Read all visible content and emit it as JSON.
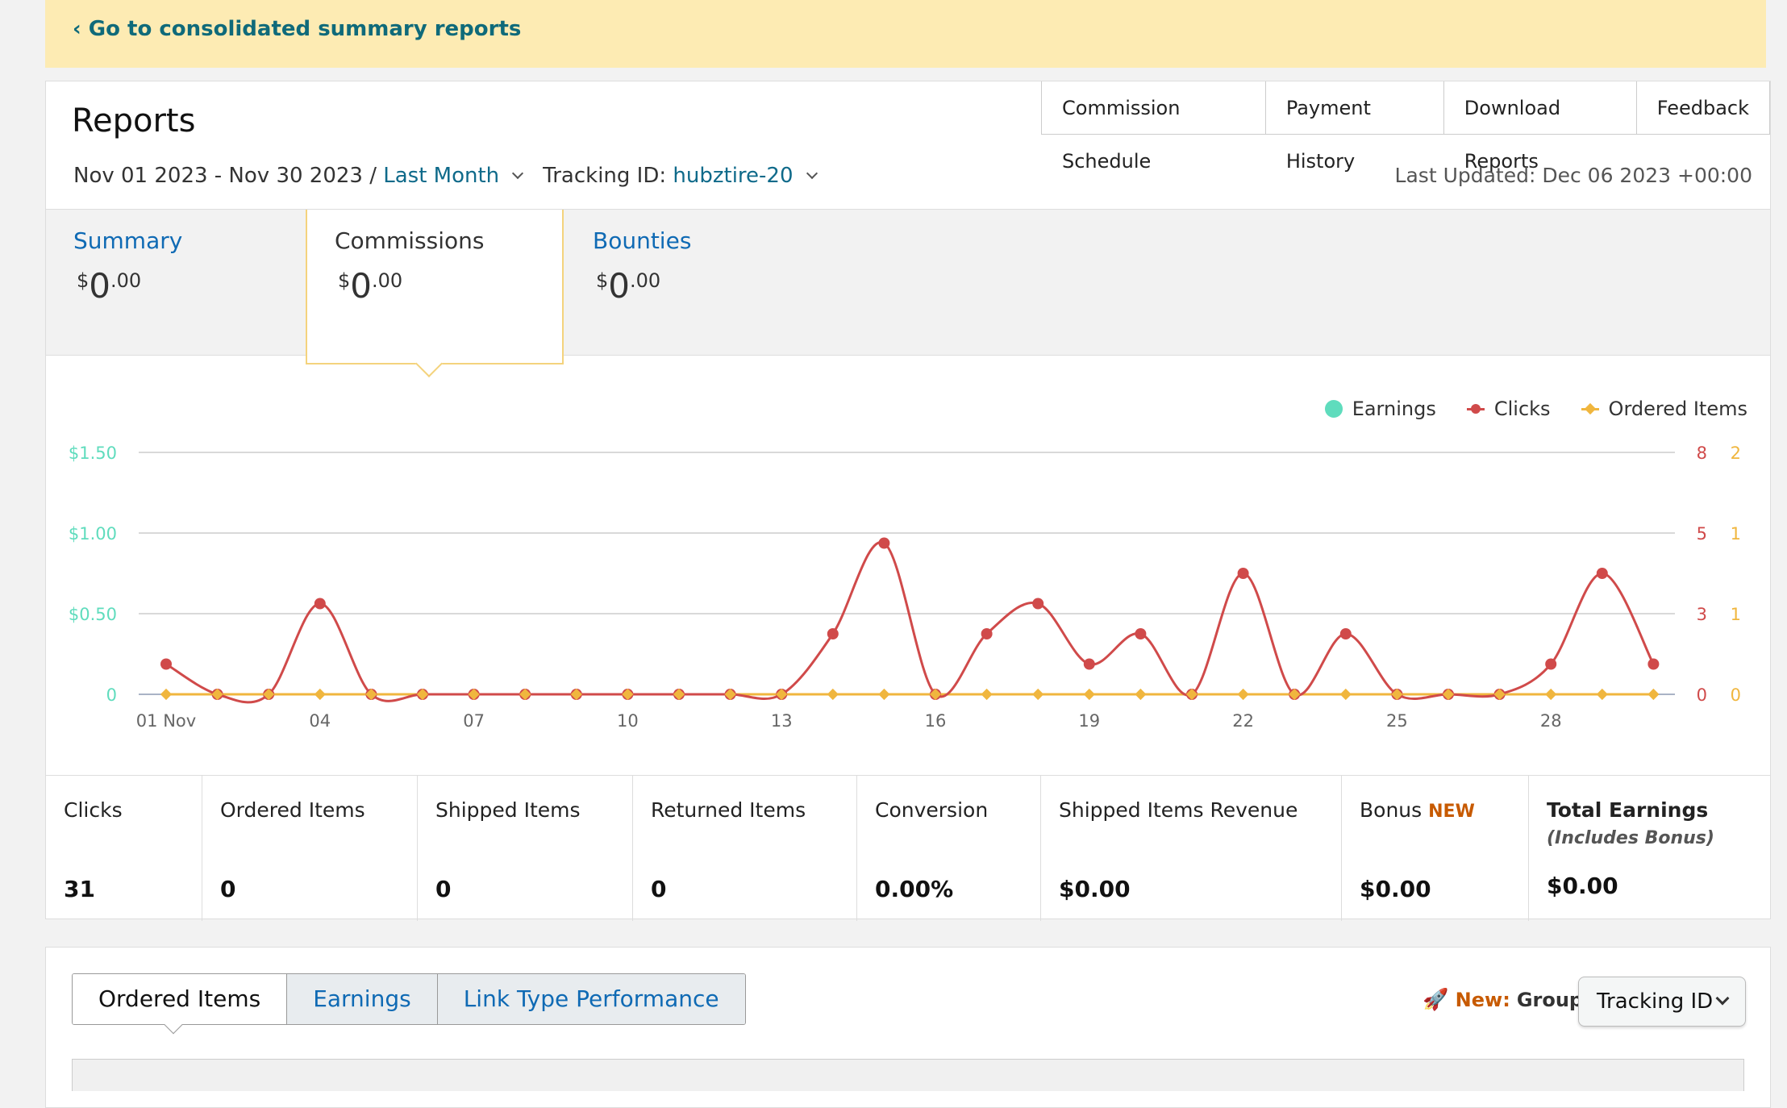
{
  "banner": {
    "back_link": "‹ Go to consolidated summary reports"
  },
  "reports": {
    "title": "Reports",
    "toplinks": [
      "Commission Schedule",
      "Payment History",
      "Download Reports",
      "Feedback"
    ],
    "date_range": "Nov 01 2023 - Nov 30 2023 /",
    "period": "Last Month",
    "tracking_label": "Tracking ID:",
    "tracking_id": "hubztire-20",
    "last_updated": "Last Updated: Dec 06 2023 +00:00"
  },
  "tabs": [
    {
      "label": "Summary",
      "currency": "$",
      "whole": "0",
      "cents": ".00",
      "active": false
    },
    {
      "label": "Commissions",
      "currency": "$",
      "whole": "0",
      "cents": ".00",
      "active": true
    },
    {
      "label": "Bounties",
      "currency": "$",
      "whole": "0",
      "cents": ".00",
      "active": false
    }
  ],
  "legend": {
    "earnings": "Earnings",
    "clicks": "Clicks",
    "ordered": "Ordered Items"
  },
  "colors": {
    "earnings": "#5fdcbd",
    "clicks": "#d04a4a",
    "ordered": "#f0b63e",
    "link": "#0f6ab4"
  },
  "chart_data": {
    "type": "line",
    "x_tick_labels": [
      "01 Nov",
      "04",
      "07",
      "10",
      "13",
      "16",
      "19",
      "22",
      "25",
      "28"
    ],
    "x": [
      1,
      2,
      3,
      4,
      5,
      6,
      7,
      8,
      9,
      10,
      11,
      12,
      13,
      14,
      15,
      16,
      17,
      18,
      19,
      20,
      21,
      22,
      23,
      24,
      25,
      26,
      27,
      28,
      29,
      30
    ],
    "series": [
      {
        "name": "Earnings",
        "axis": "left",
        "values": [
          0,
          0,
          0,
          0,
          0,
          0,
          0,
          0,
          0,
          0,
          0,
          0,
          0,
          0,
          0,
          0,
          0,
          0,
          0,
          0,
          0,
          0,
          0,
          0,
          0,
          0,
          0,
          0,
          0,
          0
        ]
      },
      {
        "name": "Clicks",
        "axis": "right-1",
        "values": [
          1,
          0,
          0,
          3,
          0,
          0,
          0,
          0,
          0,
          0,
          0,
          0,
          0,
          2,
          5,
          0,
          2,
          3,
          1,
          2,
          0,
          4,
          0,
          2,
          0,
          0,
          0,
          1,
          4,
          1
        ]
      },
      {
        "name": "Ordered Items",
        "axis": "right-2",
        "values": [
          0,
          0,
          0,
          0,
          0,
          0,
          0,
          0,
          0,
          0,
          0,
          0,
          0,
          0,
          0,
          0,
          0,
          0,
          0,
          0,
          0,
          0,
          0,
          0,
          0,
          0,
          0,
          0,
          0,
          0
        ]
      }
    ],
    "y_left": {
      "ticks": [
        "0",
        "$0.50",
        "$1.00",
        "$1.50"
      ],
      "range": [
        0,
        1.5
      ]
    },
    "y_right1": {
      "ticks": [
        "0",
        "3",
        "5",
        "8"
      ],
      "range": [
        0,
        8
      ]
    },
    "y_right2": {
      "ticks": [
        "0",
        "1",
        "1",
        "2"
      ],
      "range": [
        0,
        2
      ]
    },
    "grid": true,
    "legend": "top-right"
  },
  "stats": [
    {
      "label": "Clicks",
      "value": "31"
    },
    {
      "label": "Ordered Items",
      "value": "0"
    },
    {
      "label": "Shipped Items",
      "value": "0"
    },
    {
      "label": "Returned Items",
      "value": "0"
    },
    {
      "label": "Conversion",
      "value": "0.00%"
    },
    {
      "label": "Shipped Items Revenue",
      "value": "$0.00"
    },
    {
      "label": "Bonus",
      "badge": "NEW",
      "value": "$0.00"
    },
    {
      "label": "Total Earnings",
      "sub": "(Includes Bonus)",
      "value": "$0.00"
    }
  ],
  "subtabs": [
    "Ordered Items",
    "Earnings",
    "Link Type Performance"
  ],
  "groupby": {
    "new_label": "New:",
    "label": "Group By:",
    "selected": "Tracking ID",
    "icon": "rocket-icon"
  }
}
